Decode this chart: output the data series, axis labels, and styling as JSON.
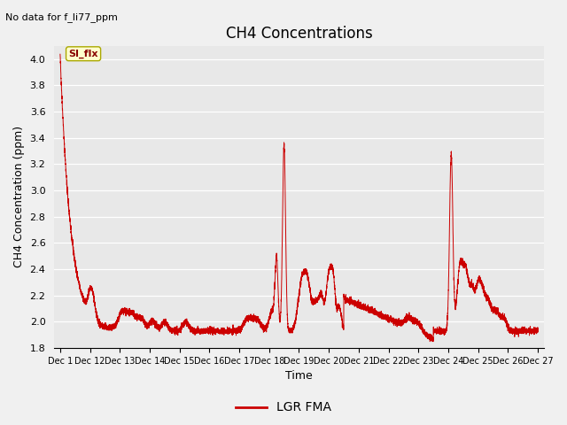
{
  "title": "CH4 Concentrations",
  "xlabel": "Time",
  "ylabel": "CH4 Concentration (ppm)",
  "top_left_text": "No data for f_li77_ppm",
  "annotation_text": "SI_flx",
  "ylim": [
    1.8,
    4.1
  ],
  "yticks": [
    1.8,
    2.0,
    2.2,
    2.4,
    2.6,
    2.8,
    3.0,
    3.2,
    3.4,
    3.6,
    3.8,
    4.0
  ],
  "legend_label": "LGR FMA",
  "line_color": "#cc0000",
  "fig_bg_color": "#f0f0f0",
  "plot_bg_color": "#e8e8e8",
  "grid_color": "#ffffff",
  "annotation_box_color": "#ffffcc",
  "annotation_text_color": "#880000",
  "x_tick_labels": [
    "Dec 1",
    "Dec 12",
    "Dec 13",
    "Dec 14",
    "Dec 15",
    "Dec 16",
    "Dec 17",
    "Dec 18",
    "Dec 19",
    "Dec 20",
    "Dec 21",
    "Dec 22",
    "Dec 23",
    "Dec 24",
    "Dec 25",
    "Dec 26",
    "Dec 27"
  ]
}
